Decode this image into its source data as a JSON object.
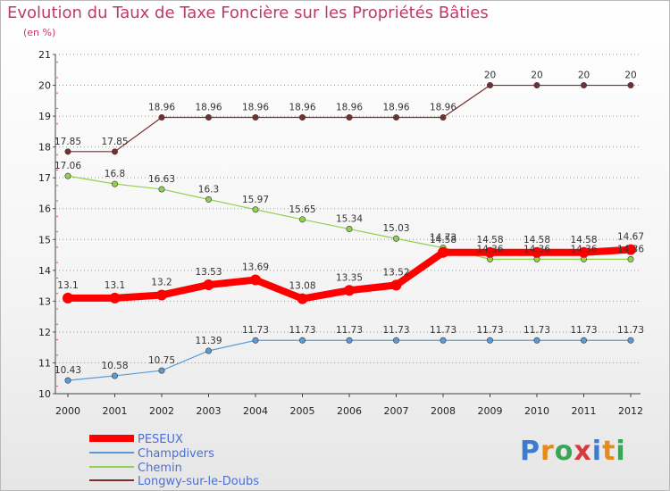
{
  "header": {
    "title": "Evolution du Taux de Taxe Foncière sur les Propriétés Bâties",
    "subtitle": "(en %)"
  },
  "logo": {
    "text": "Proxiti"
  },
  "chart_data": {
    "type": "line",
    "title": "Evolution du Taux de Taxe Foncière sur les Propriétés Bâties",
    "ylabel": "(en %)",
    "xlabel": "",
    "ylim": [
      10,
      21
    ],
    "yticks": [
      10,
      11,
      12,
      13,
      14,
      15,
      16,
      17,
      18,
      19,
      20,
      21
    ],
    "x": [
      2000,
      2001,
      2002,
      2003,
      2004,
      2005,
      2006,
      2007,
      2008,
      2009,
      2010,
      2011,
      2012
    ],
    "grid": "horizontal dotted",
    "legend_position": "bottom-left",
    "series": [
      {
        "name": "PESEUX",
        "color": "#ff0000",
        "values": [
          13.1,
          13.1,
          13.2,
          13.53,
          13.69,
          13.08,
          13.35,
          13.52,
          14.58,
          14.58,
          14.58,
          14.58,
          14.67
        ],
        "labels": [
          "13.1",
          "13.1",
          "13.2",
          "13.53",
          "13.69",
          "13.08",
          "13.35",
          "13.52",
          "14.58",
          "14.58",
          "14.58",
          "14.58",
          "14.67"
        ]
      },
      {
        "name": "Champdivers",
        "color": "#5b9bd5",
        "values": [
          10.43,
          10.58,
          10.75,
          11.39,
          11.73,
          11.73,
          11.73,
          11.73,
          11.73,
          11.73,
          11.73,
          11.73,
          11.73
        ],
        "labels": [
          "10.43",
          "10.58",
          "10.75",
          "11.39",
          "11.73",
          "11.73",
          "11.73",
          "11.73",
          "11.73",
          "11.73",
          "11.73",
          "11.73",
          "11.73"
        ]
      },
      {
        "name": "Chemin",
        "color": "#92d050",
        "values": [
          17.06,
          16.8,
          16.63,
          16.3,
          15.97,
          15.65,
          15.34,
          15.03,
          14.73,
          14.36,
          14.36,
          14.36,
          14.36
        ],
        "labels": [
          "17.06",
          "16.8",
          "16.63",
          "16.3",
          "15.97",
          "15.65",
          "15.34",
          "15.03",
          "14.73",
          "14.36",
          "14.36",
          "14.36",
          "14.36"
        ]
      },
      {
        "name": "Longwy-sur-le-Doubs",
        "color": "#7b2c2c",
        "values": [
          17.85,
          17.85,
          18.96,
          18.96,
          18.96,
          18.96,
          18.96,
          18.96,
          18.96,
          20,
          20,
          20,
          20
        ],
        "labels": [
          "17.85",
          "17.85",
          "18.96",
          "18.96",
          "18.96",
          "18.96",
          "18.96",
          "18.96",
          "18.96",
          "20",
          "20",
          "20",
          "20"
        ]
      }
    ]
  }
}
